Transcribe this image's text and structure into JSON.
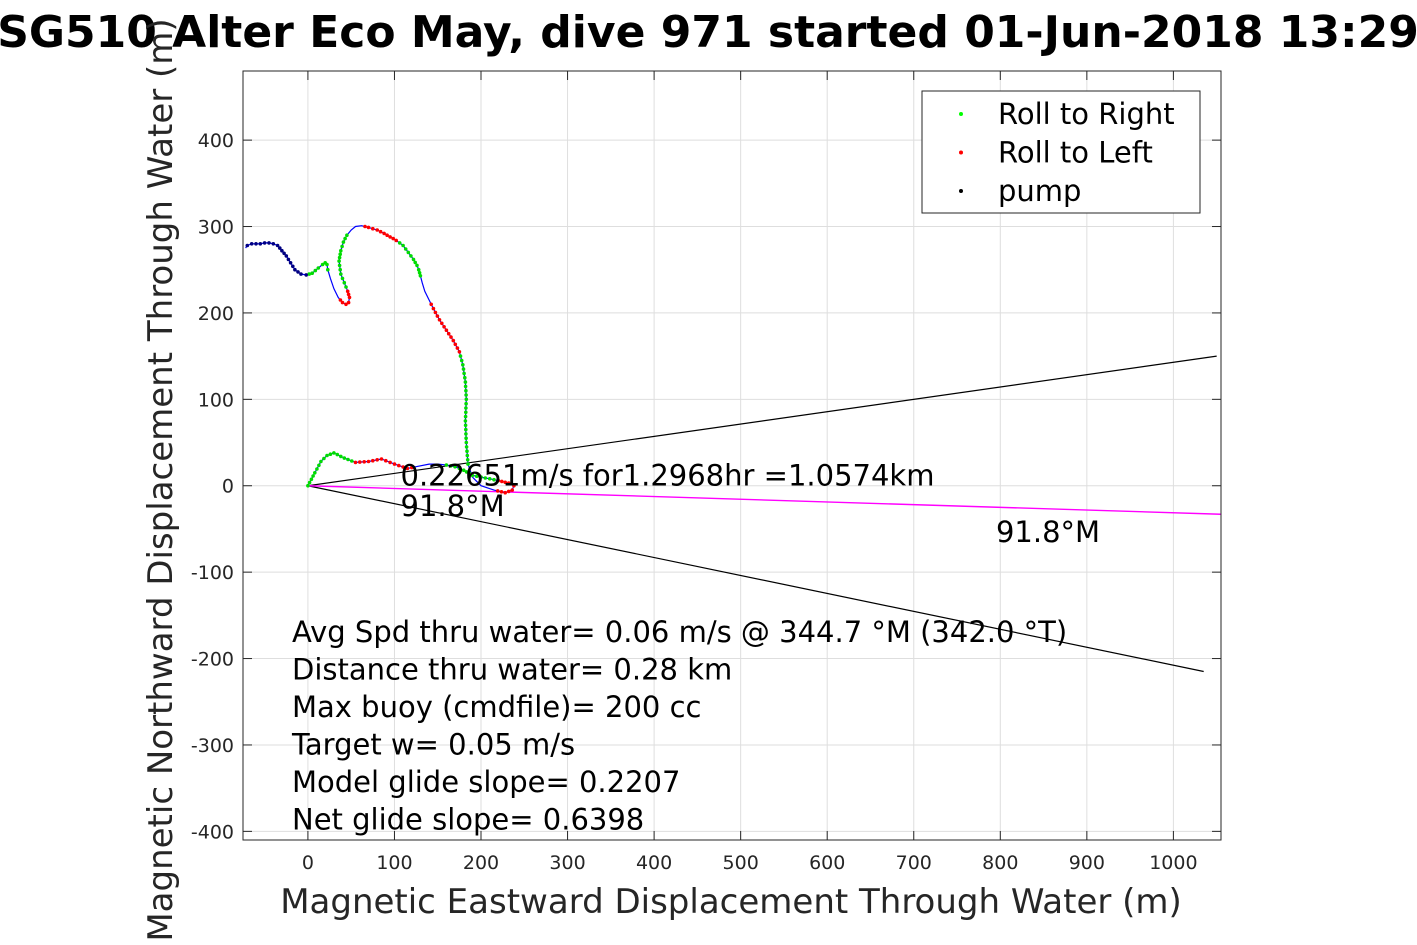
{
  "chart_data": {
    "type": "scatter",
    "title": "SG510 Alter Eco May, dive 971 started 01-Jun-2018 13:29",
    "xlabel": "Magnetic Eastward Displacement Through Water (m)",
    "ylabel": "Magnetic Northward Displacement Through Water (m)",
    "xlim": [
      -75,
      1055
    ],
    "ylim": [
      -410,
      480
    ],
    "xticks": [
      0,
      100,
      200,
      300,
      400,
      500,
      600,
      700,
      800,
      900,
      1000
    ],
    "yticks": [
      -400,
      -300,
      -200,
      -100,
      0,
      100,
      200,
      300,
      400
    ],
    "grid": true,
    "legend": {
      "placement": "top-right",
      "entries": [
        {
          "name": "Roll to Right",
          "color": "#00ff00"
        },
        {
          "name": "Roll to Left",
          "color": "#ff0000"
        },
        {
          "name": "pump",
          "color": "#000000"
        }
      ]
    },
    "track": {
      "color": "#0000ff",
      "x": [
        0,
        8,
        15,
        22,
        30,
        42,
        55,
        70,
        85,
        100,
        115,
        125,
        140,
        150,
        160,
        170,
        180,
        190,
        200,
        210,
        220,
        232,
        238,
        236,
        228,
        215,
        200,
        190,
        185,
        183,
        182,
        183,
        182,
        179,
        175,
        168,
        160,
        152,
        145,
        140,
        135,
        132,
        130,
        128,
        126,
        122,
        116,
        110,
        102,
        95,
        88,
        80,
        70,
        62,
        55,
        50,
        45,
        41,
        38,
        36,
        38,
        42,
        46,
        48,
        47,
        44,
        40,
        35,
        30,
        26,
        23,
        22,
        20,
        17,
        12,
        5,
        -2,
        -8,
        -15,
        -20,
        -25,
        -30,
        -35,
        -40,
        -45,
        -50,
        -55,
        -60,
        -65,
        -70,
        -72
      ],
      "y": [
        0,
        15,
        28,
        35,
        38,
        32,
        27,
        28,
        31,
        25,
        20,
        22,
        25,
        25,
        24,
        22,
        18,
        12,
        10,
        8,
        6,
        3,
        0,
        -5,
        -8,
        -5,
        0,
        10,
        25,
        50,
        75,
        100,
        120,
        140,
        155,
        168,
        180,
        192,
        205,
        215,
        225,
        235,
        243,
        250,
        255,
        262,
        270,
        278,
        284,
        288,
        292,
        296,
        299,
        301,
        300,
        296,
        290,
        282,
        272,
        260,
        245,
        235,
        225,
        218,
        212,
        210,
        212,
        218,
        228,
        240,
        250,
        256,
        258,
        256,
        252,
        246,
        244,
        245,
        250,
        258,
        266,
        272,
        278,
        280,
        281,
        281,
        280,
        280,
        280,
        278,
        275
      ]
    },
    "heading_lines": {
      "color": "#000000",
      "upper": {
        "x": [
          0,
          1050
        ],
        "y": [
          0,
          150
        ]
      },
      "lower": {
        "x": [
          0,
          1035
        ],
        "y": [
          0,
          -215
        ]
      }
    },
    "drift_line": {
      "color": "#ff00ff",
      "x": [
        0,
        1055
      ],
      "y": [
        0,
        -33
      ]
    },
    "annotations": [
      {
        "text": "0.22651m/s for1.2968hr =1.0574km",
        "x": 107,
        "y": 0
      },
      {
        "text": "91.8°M",
        "x": 107,
        "y": -35
      },
      {
        "text": "91.8°M",
        "x": 795,
        "y": -65
      }
    ],
    "stats_lines": [
      "Avg Spd thru water=  0.06 m/s @ 344.7 °M (342.0 °T)",
      "Distance thru water=  0.28 km",
      "Max buoy (cmdfile)= 200 cc",
      "Target w= 0.05 m/s",
      "Model glide slope= 0.2207",
      "Net glide slope= 0.6398"
    ]
  }
}
